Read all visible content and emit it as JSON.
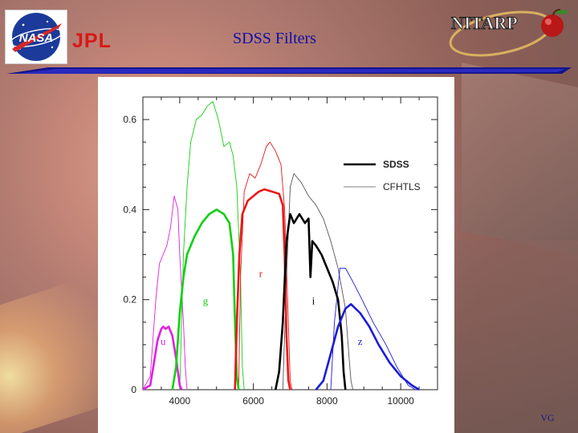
{
  "slide": {
    "title": "SDSS Filters",
    "footer_tag": "VG"
  },
  "logos": {
    "nasa": {
      "text": "NASA",
      "icon": "nasa-meatball-icon"
    },
    "jpl": {
      "text": "JPL",
      "icon": "jpl-logo-icon"
    },
    "nitarp": {
      "text": "NITARP",
      "icon": "nitarp-apple-icon"
    }
  },
  "colors": {
    "title": "#1010a8",
    "u": "#e020e0",
    "g": "#10d010",
    "r": "#e81818",
    "i": "#000000",
    "z": "#1c1cd8"
  },
  "chart_data": {
    "type": "line",
    "xlim": [
      3000,
      11000
    ],
    "ylim": [
      0,
      0.65
    ],
    "x_ticks": [
      4000,
      6000,
      8000,
      10000
    ],
    "y_ticks": [
      0,
      0.2,
      0.4,
      0.6
    ],
    "x_tick_labels": [
      "4000",
      "6000",
      "8000",
      "10000"
    ],
    "y_tick_labels": [
      "0",
      "0.2",
      "0.4",
      "0.6"
    ],
    "legend": {
      "position": "top-right",
      "entries": [
        {
          "label": "SDSS",
          "style": "thick"
        },
        {
          "label": "CFHTLS",
          "style": "thin"
        }
      ]
    },
    "band_labels": [
      {
        "text": "u",
        "band": "u",
        "x": 3550,
        "y": 0.1
      },
      {
        "text": "g",
        "band": "g",
        "x": 4700,
        "y": 0.19
      },
      {
        "text": "r",
        "band": "r",
        "x": 6200,
        "y": 0.25
      },
      {
        "text": "i",
        "band": "i",
        "x": 7630,
        "y": 0.19
      },
      {
        "text": "z",
        "band": "z",
        "x": 8900,
        "y": 0.1
      }
    ],
    "series": [
      {
        "band": "u",
        "system": "SDSS",
        "points": [
          [
            3000,
            0
          ],
          [
            3200,
            0.01
          ],
          [
            3300,
            0.06
          ],
          [
            3400,
            0.11
          ],
          [
            3500,
            0.135
          ],
          [
            3550,
            0.14
          ],
          [
            3620,
            0.135
          ],
          [
            3700,
            0.14
          ],
          [
            3800,
            0.12
          ],
          [
            3900,
            0.07
          ],
          [
            4000,
            0.01
          ],
          [
            4050,
            0
          ]
        ]
      },
      {
        "band": "u",
        "system": "CFHTLS",
        "points": [
          [
            3000,
            0
          ],
          [
            3200,
            0.03
          ],
          [
            3350,
            0.2
          ],
          [
            3450,
            0.28
          ],
          [
            3550,
            0.3
          ],
          [
            3650,
            0.32
          ],
          [
            3750,
            0.36
          ],
          [
            3850,
            0.43
          ],
          [
            3950,
            0.4
          ],
          [
            4000,
            0.3
          ],
          [
            4100,
            0.15
          ],
          [
            4150,
            0.05
          ],
          [
            4200,
            0
          ]
        ]
      },
      {
        "band": "g",
        "system": "SDSS",
        "points": [
          [
            3800,
            0
          ],
          [
            3900,
            0.05
          ],
          [
            4000,
            0.17
          ],
          [
            4100,
            0.25
          ],
          [
            4200,
            0.3
          ],
          [
            4400,
            0.34
          ],
          [
            4600,
            0.37
          ],
          [
            4800,
            0.39
          ],
          [
            5000,
            0.4
          ],
          [
            5200,
            0.39
          ],
          [
            5350,
            0.37
          ],
          [
            5450,
            0.3
          ],
          [
            5500,
            0.15
          ],
          [
            5550,
            0.03
          ],
          [
            5600,
            0
          ]
        ]
      },
      {
        "band": "g",
        "system": "CFHTLS",
        "points": [
          [
            4000,
            0
          ],
          [
            4100,
            0.3
          ],
          [
            4200,
            0.45
          ],
          [
            4300,
            0.55
          ],
          [
            4450,
            0.6
          ],
          [
            4600,
            0.61
          ],
          [
            4750,
            0.63
          ],
          [
            4900,
            0.64
          ],
          [
            5050,
            0.6
          ],
          [
            5200,
            0.54
          ],
          [
            5350,
            0.55
          ],
          [
            5450,
            0.52
          ],
          [
            5550,
            0.45
          ],
          [
            5650,
            0.25
          ],
          [
            5700,
            0.05
          ],
          [
            5750,
            0
          ]
        ]
      },
      {
        "band": "r",
        "system": "SDSS",
        "points": [
          [
            5500,
            0
          ],
          [
            5550,
            0.15
          ],
          [
            5620,
            0.3
          ],
          [
            5700,
            0.39
          ],
          [
            5850,
            0.42
          ],
          [
            6000,
            0.43
          ],
          [
            6150,
            0.44
          ],
          [
            6300,
            0.445
          ],
          [
            6500,
            0.44
          ],
          [
            6700,
            0.435
          ],
          [
            6800,
            0.41
          ],
          [
            6850,
            0.3
          ],
          [
            6900,
            0.12
          ],
          [
            6950,
            0.02
          ],
          [
            7000,
            0
          ]
        ]
      },
      {
        "band": "r",
        "system": "CFHTLS",
        "points": [
          [
            5600,
            0
          ],
          [
            5650,
            0.25
          ],
          [
            5750,
            0.44
          ],
          [
            5900,
            0.48
          ],
          [
            6050,
            0.47
          ],
          [
            6200,
            0.5
          ],
          [
            6350,
            0.54
          ],
          [
            6450,
            0.55
          ],
          [
            6600,
            0.53
          ],
          [
            6750,
            0.5
          ],
          [
            6850,
            0.4
          ],
          [
            6950,
            0.15
          ],
          [
            7000,
            0.02
          ],
          [
            7050,
            0
          ]
        ]
      },
      {
        "band": "i",
        "system": "SDSS",
        "points": [
          [
            6600,
            0
          ],
          [
            6700,
            0.04
          ],
          [
            6800,
            0.15
          ],
          [
            6900,
            0.33
          ],
          [
            7000,
            0.39
          ],
          [
            7100,
            0.37
          ],
          [
            7250,
            0.39
          ],
          [
            7400,
            0.37
          ],
          [
            7500,
            0.38
          ],
          [
            7550,
            0.25
          ],
          [
            7600,
            0.33
          ],
          [
            7700,
            0.32
          ],
          [
            7850,
            0.3
          ],
          [
            8000,
            0.27
          ],
          [
            8150,
            0.24
          ],
          [
            8300,
            0.2
          ],
          [
            8400,
            0.12
          ],
          [
            8450,
            0.04
          ],
          [
            8500,
            0
          ]
        ]
      },
      {
        "band": "i",
        "system": "CFHTLS",
        "points": [
          [
            6800,
            0
          ],
          [
            6900,
            0.25
          ],
          [
            7000,
            0.45
          ],
          [
            7100,
            0.48
          ],
          [
            7300,
            0.46
          ],
          [
            7500,
            0.43
          ],
          [
            7700,
            0.41
          ],
          [
            7900,
            0.38
          ],
          [
            8100,
            0.33
          ],
          [
            8300,
            0.27
          ],
          [
            8500,
            0.18
          ],
          [
            8600,
            0.07
          ],
          [
            8650,
            0.02
          ],
          [
            8700,
            0
          ]
        ]
      },
      {
        "band": "z",
        "system": "SDSS",
        "points": [
          [
            7700,
            0
          ],
          [
            7900,
            0.02
          ],
          [
            8100,
            0.08
          ],
          [
            8300,
            0.14
          ],
          [
            8500,
            0.18
          ],
          [
            8650,
            0.19
          ],
          [
            8900,
            0.17
          ],
          [
            9150,
            0.14
          ],
          [
            9400,
            0.1
          ],
          [
            9700,
            0.06
          ],
          [
            10000,
            0.03
          ],
          [
            10300,
            0.01
          ],
          [
            10500,
            0
          ]
        ]
      },
      {
        "band": "z",
        "system": "CFHTLS",
        "points": [
          [
            8100,
            0
          ],
          [
            8200,
            0.15
          ],
          [
            8350,
            0.27
          ],
          [
            8500,
            0.27
          ],
          [
            8700,
            0.24
          ],
          [
            8950,
            0.2
          ],
          [
            9250,
            0.15
          ],
          [
            9600,
            0.1
          ],
          [
            9900,
            0.05
          ],
          [
            10200,
            0.01
          ],
          [
            10400,
            0
          ]
        ]
      }
    ]
  }
}
